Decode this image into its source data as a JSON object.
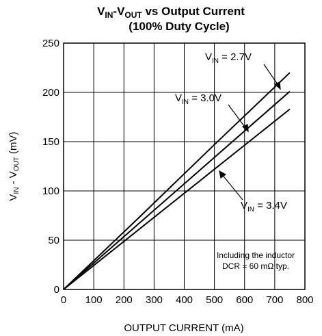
{
  "chart_data": {
    "type": "line",
    "title": {
      "parts": [
        "V",
        "IN",
        "-V",
        "OUT",
        " vs Output Current"
      ],
      "line2": "(100% Duty Cycle)"
    },
    "x_label": "OUTPUT CURRENT (mA)",
    "y_label": {
      "parts": [
        "V",
        "IN",
        " - V",
        "OUT",
        " (mV)"
      ]
    },
    "x": [
      0,
      250,
      500,
      750
    ],
    "series": [
      {
        "name": {
          "parts": [
            "V",
            "IN",
            " = 2.7V"
          ]
        },
        "color": "#000000",
        "values": [
          0,
          73,
          147,
          220
        ]
      },
      {
        "name": {
          "parts": [
            "V",
            "IN",
            " = 3.0V"
          ]
        },
        "color": "#000000",
        "values": [
          0,
          67,
          134,
          201
        ]
      },
      {
        "name": {
          "parts": [
            "V",
            "IN",
            " = 3.4V"
          ]
        },
        "color": "#000000",
        "values": [
          0,
          61,
          122,
          183
        ]
      }
    ],
    "xlim": [
      0,
      800
    ],
    "xticks": [
      0,
      100,
      200,
      300,
      400,
      500,
      600,
      700,
      800
    ],
    "ylim": [
      0,
      250
    ],
    "yticks": [
      0,
      50,
      100,
      150,
      200,
      250
    ],
    "grid": true,
    "annotation": [
      "Including the inductor",
      "DCR = 60 mΩ typ."
    ]
  }
}
